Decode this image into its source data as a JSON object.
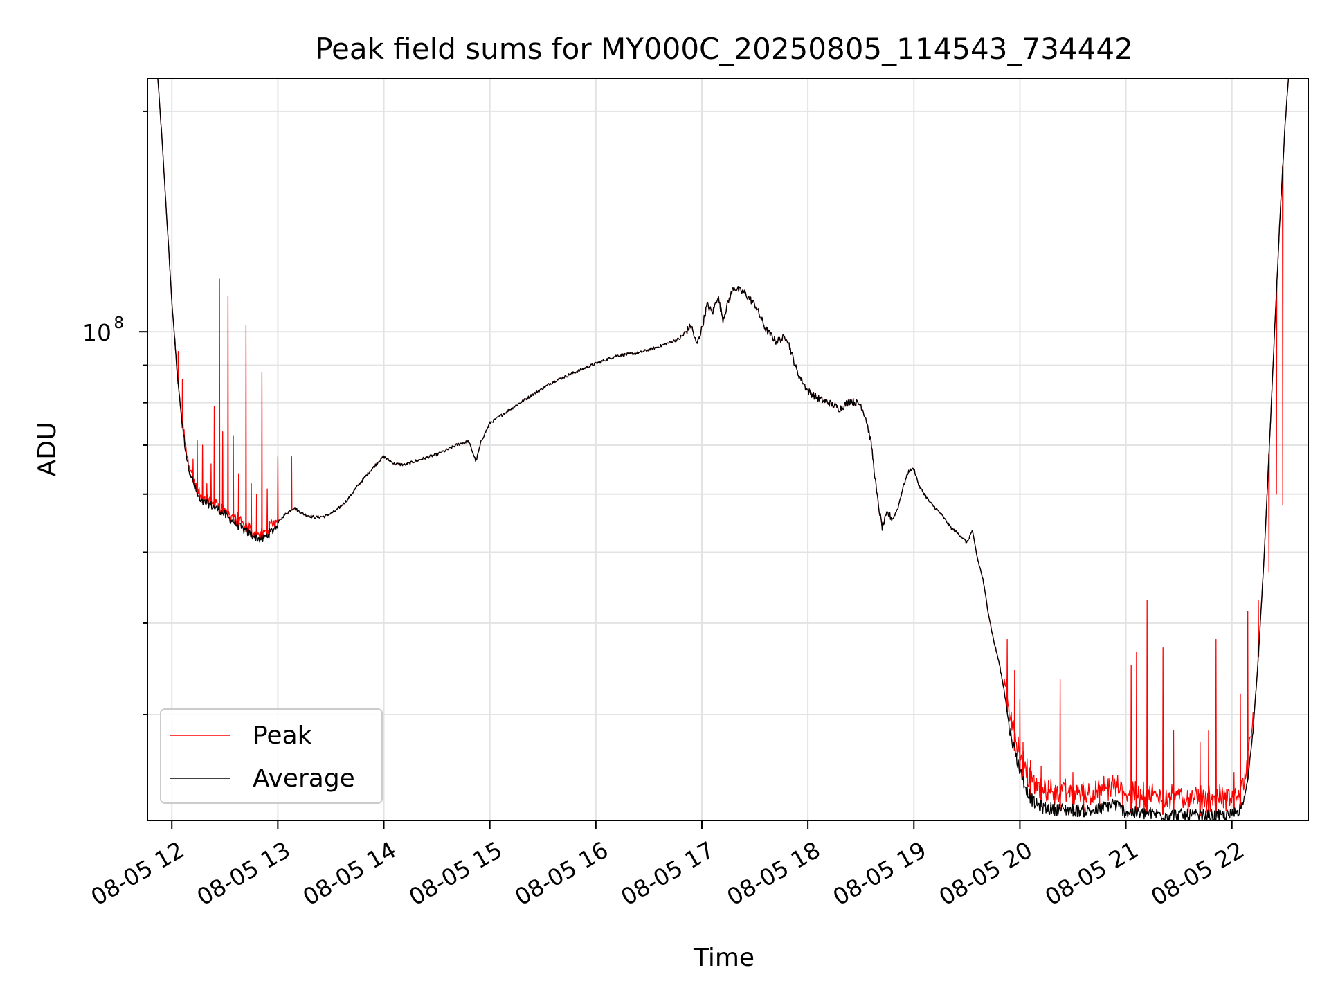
{
  "chart_data": {
    "type": "line",
    "title": "Peak field sums for MY000C_20250805_114543_734442",
    "xlabel": "Time",
    "ylabel": "ADU",
    "yscale": "log",
    "ytick_major": {
      "value": 100000000,
      "base": "10",
      "exponent": "8"
    },
    "ylim": [
      21500000,
      222000000
    ],
    "xlim_hours": [
      11.77,
      22.72
    ],
    "xticks": [
      {
        "hour": 12,
        "label": "08-05 12"
      },
      {
        "hour": 13,
        "label": "08-05 13"
      },
      {
        "hour": 14,
        "label": "08-05 14"
      },
      {
        "hour": 15,
        "label": "08-05 15"
      },
      {
        "hour": 16,
        "label": "08-05 16"
      },
      {
        "hour": 17,
        "label": "08-05 17"
      },
      {
        "hour": 18,
        "label": "08-05 18"
      },
      {
        "hour": 19,
        "label": "08-05 19"
      },
      {
        "hour": 20,
        "label": "08-05 20"
      },
      {
        "hour": 21,
        "label": "08-05 21"
      },
      {
        "hour": 22,
        "label": "08-05 22"
      }
    ],
    "grid": true,
    "legend": {
      "position": "lower-left"
    },
    "average_profile": [
      [
        11.86,
        230000000
      ],
      [
        11.9,
        190000000
      ],
      [
        11.95,
        145000000
      ],
      [
        12.0,
        110000000
      ],
      [
        12.05,
        88000000
      ],
      [
        12.1,
        74000000
      ],
      [
        12.15,
        66000000
      ],
      [
        12.22,
        61000000
      ],
      [
        12.27,
        58500000
      ],
      [
        12.35,
        58200000
      ],
      [
        12.45,
        57000000
      ],
      [
        12.55,
        55500000
      ],
      [
        12.65,
        54000000
      ],
      [
        12.75,
        52800000
      ],
      [
        12.85,
        52000000
      ],
      [
        12.95,
        53500000
      ],
      [
        13.05,
        56000000
      ],
      [
        13.15,
        57500000
      ],
      [
        13.25,
        56300000
      ],
      [
        13.35,
        55800000
      ],
      [
        13.45,
        56000000
      ],
      [
        13.55,
        57000000
      ],
      [
        13.65,
        58800000
      ],
      [
        13.75,
        61500000
      ],
      [
        13.85,
        64000000
      ],
      [
        13.95,
        66500000
      ],
      [
        14.0,
        67500000
      ],
      [
        14.1,
        66000000
      ],
      [
        14.2,
        65800000
      ],
      [
        14.3,
        66600000
      ],
      [
        14.4,
        67300000
      ],
      [
        14.5,
        68000000
      ],
      [
        14.6,
        69000000
      ],
      [
        14.7,
        70200000
      ],
      [
        14.8,
        70800000
      ],
      [
        14.87,
        66500000
      ],
      [
        14.92,
        71000000
      ],
      [
        15.0,
        75000000
      ],
      [
        15.2,
        78500000
      ],
      [
        15.4,
        82000000
      ],
      [
        15.6,
        85500000
      ],
      [
        15.8,
        88000000
      ],
      [
        16.0,
        90500000
      ],
      [
        16.2,
        92800000
      ],
      [
        16.4,
        93500000
      ],
      [
        16.6,
        95500000
      ],
      [
        16.8,
        98000000
      ],
      [
        16.9,
        102000000
      ],
      [
        16.95,
        96000000
      ],
      [
        17.0,
        101000000
      ],
      [
        17.05,
        109000000
      ],
      [
        17.1,
        106000000
      ],
      [
        17.15,
        112000000
      ],
      [
        17.2,
        104000000
      ],
      [
        17.25,
        110000000
      ],
      [
        17.3,
        115000000
      ],
      [
        17.4,
        113000000
      ],
      [
        17.5,
        109000000
      ],
      [
        17.6,
        101000000
      ],
      [
        17.7,
        97000000
      ],
      [
        17.8,
        98500000
      ],
      [
        17.9,
        88000000
      ],
      [
        18.0,
        83000000
      ],
      [
        18.1,
        81000000
      ],
      [
        18.2,
        80000000
      ],
      [
        18.3,
        78500000
      ],
      [
        18.4,
        80500000
      ],
      [
        18.5,
        79500000
      ],
      [
        18.55,
        76000000
      ],
      [
        18.6,
        70000000
      ],
      [
        18.65,
        60000000
      ],
      [
        18.7,
        54000000
      ],
      [
        18.75,
        56500000
      ],
      [
        18.8,
        55500000
      ],
      [
        18.85,
        57500000
      ],
      [
        18.9,
        61500000
      ],
      [
        18.95,
        64500000
      ],
      [
        19.0,
        65000000
      ],
      [
        19.05,
        61500000
      ],
      [
        19.15,
        58500000
      ],
      [
        19.25,
        56500000
      ],
      [
        19.35,
        54000000
      ],
      [
        19.45,
        52500000
      ],
      [
        19.5,
        51500000
      ],
      [
        19.55,
        53500000
      ],
      [
        19.6,
        49000000
      ],
      [
        19.65,
        46000000
      ],
      [
        19.7,
        41500000
      ],
      [
        19.75,
        38000000
      ],
      [
        19.8,
        35500000
      ],
      [
        19.85,
        32500000
      ],
      [
        19.9,
        28800000
      ],
      [
        19.95,
        26800000
      ],
      [
        20.0,
        25200000
      ],
      [
        20.05,
        24000000
      ],
      [
        20.1,
        23100000
      ],
      [
        20.15,
        22600000
      ],
      [
        20.25,
        22350000
      ],
      [
        20.4,
        22250000
      ],
      [
        20.55,
        22200000
      ],
      [
        20.7,
        22150000
      ],
      [
        20.8,
        22400000
      ],
      [
        20.88,
        22700000
      ],
      [
        20.93,
        22450000
      ],
      [
        21.0,
        22100000
      ],
      [
        21.1,
        22000000
      ],
      [
        21.25,
        21950000
      ],
      [
        21.4,
        21900000
      ],
      [
        21.55,
        21850000
      ],
      [
        21.7,
        21800000
      ],
      [
        21.85,
        21780000
      ],
      [
        22.0,
        21830000
      ],
      [
        22.1,
        22500000
      ],
      [
        22.15,
        24500000
      ],
      [
        22.2,
        28500000
      ],
      [
        22.25,
        36000000
      ],
      [
        22.3,
        48000000
      ],
      [
        22.35,
        68000000
      ],
      [
        22.4,
        98000000
      ],
      [
        22.45,
        140000000
      ],
      [
        22.5,
        190000000
      ],
      [
        22.55,
        240000000
      ]
    ],
    "peak_spikes": [
      [
        12.03,
        98000000
      ],
      [
        12.06,
        94000000
      ],
      [
        12.1,
        86000000
      ],
      [
        12.2,
        67000000
      ],
      [
        12.24,
        71000000
      ],
      [
        12.29,
        70000000
      ],
      [
        12.33,
        62000000
      ],
      [
        12.37,
        66000000
      ],
      [
        12.4,
        79000000
      ],
      [
        12.45,
        118000000
      ],
      [
        12.48,
        73000000
      ],
      [
        12.53,
        112000000
      ],
      [
        12.58,
        72000000
      ],
      [
        12.63,
        64000000
      ],
      [
        12.7,
        102000000
      ],
      [
        12.75,
        62000000
      ],
      [
        12.8,
        60000000
      ],
      [
        12.85,
        88000000
      ],
      [
        12.9,
        61000000
      ],
      [
        13.0,
        67500000
      ],
      [
        13.13,
        67500000
      ],
      [
        19.88,
        38000000
      ],
      [
        19.95,
        34500000
      ],
      [
        20.0,
        31500000
      ],
      [
        20.03,
        27500000
      ],
      [
        20.1,
        26000000
      ],
      [
        20.2,
        25500000
      ],
      [
        20.38,
        33500000
      ],
      [
        20.5,
        25000000
      ],
      [
        20.6,
        24000000
      ],
      [
        20.75,
        24000000
      ],
      [
        21.05,
        35000000
      ],
      [
        21.1,
        36500000
      ],
      [
        21.2,
        43000000
      ],
      [
        21.35,
        37000000
      ],
      [
        21.45,
        28500000
      ],
      [
        21.7,
        27500000
      ],
      [
        21.78,
        28500000
      ],
      [
        21.85,
        38000000
      ],
      [
        22.02,
        25000000
      ],
      [
        22.08,
        32000000
      ],
      [
        22.15,
        41500000
      ],
      [
        22.25,
        43000000
      ],
      [
        22.35,
        47000000
      ],
      [
        22.42,
        60000000
      ],
      [
        22.48,
        58000000
      ]
    ],
    "series": [
      {
        "name": "Peak",
        "color": "#ff0000"
      },
      {
        "name": "Average",
        "color": "#000000"
      }
    ]
  }
}
